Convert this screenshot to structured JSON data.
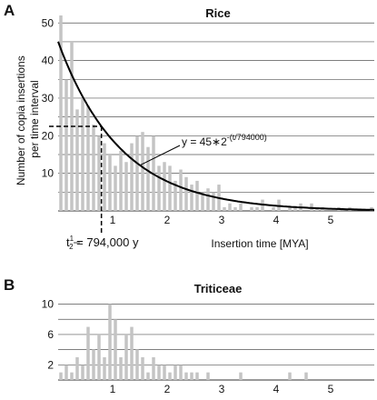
{
  "chart_data": [
    {
      "panel": "A",
      "title": "Rice",
      "type": "bar",
      "xlabel": "Insertion time [MYA]",
      "ylabel": [
        "Number of copia insertions",
        "per time interval"
      ],
      "xlim": [
        0,
        5.8
      ],
      "ylim": [
        0,
        52
      ],
      "xticks": [
        1,
        2,
        3,
        4,
        5
      ],
      "yticks": [
        10,
        20,
        30,
        40,
        50
      ],
      "grid": "horizontal every 5",
      "bin_width": 0.1,
      "x": [
        0.05,
        0.15,
        0.25,
        0.35,
        0.45,
        0.55,
        0.65,
        0.75,
        0.85,
        0.95,
        1.05,
        1.15,
        1.25,
        1.35,
        1.45,
        1.55,
        1.65,
        1.75,
        1.85,
        1.95,
        2.05,
        2.15,
        2.25,
        2.35,
        2.45,
        2.55,
        2.65,
        2.75,
        2.85,
        2.95,
        3.05,
        3.15,
        3.25,
        3.35,
        3.45,
        3.55,
        3.65,
        3.75,
        3.85,
        3.95,
        4.05,
        4.15,
        4.25,
        4.35,
        4.45,
        4.55,
        4.65,
        4.75,
        4.85,
        4.95,
        5.05,
        5.15,
        5.25,
        5.35,
        5.45,
        5.55,
        5.65,
        5.75
      ],
      "values": [
        52,
        35,
        45,
        27,
        30,
        28,
        23,
        20,
        18,
        15,
        12,
        16,
        13,
        18,
        20,
        21,
        17,
        20,
        12,
        13,
        12,
        8,
        11,
        9,
        7,
        8,
        5,
        6,
        5,
        7,
        1,
        2,
        1,
        2,
        0,
        1,
        1,
        3,
        0,
        1,
        3,
        0,
        1,
        1,
        2,
        0,
        2,
        1,
        1,
        0,
        0,
        1,
        0,
        1,
        0,
        0,
        0,
        1
      ],
      "fit": {
        "label_parts": [
          "y = 45",
          "∗",
          "2",
          "-(t/794000)"
        ],
        "y0": 45,
        "half_life_mya": 0.794
      },
      "half_life_label": [
        "t",
        "1",
        "2",
        " = 794,000 y"
      ],
      "half_life_marker": {
        "x": 0.794,
        "y": 22.5
      }
    },
    {
      "panel": "B",
      "title": "Triticeae",
      "type": "bar",
      "xlabel": "",
      "ylabel": "",
      "xlim": [
        0,
        5.8
      ],
      "ylim": [
        0,
        11.5
      ],
      "xticks": [
        1,
        2,
        3,
        4,
        5
      ],
      "yticks": [
        2,
        6,
        10
      ],
      "grid": "horizontal every 2",
      "bin_width": 0.1,
      "x": [
        0.05,
        0.15,
        0.25,
        0.35,
        0.45,
        0.55,
        0.65,
        0.75,
        0.85,
        0.95,
        1.05,
        1.15,
        1.25,
        1.35,
        1.45,
        1.55,
        1.65,
        1.75,
        1.85,
        1.95,
        2.05,
        2.15,
        2.25,
        2.35,
        2.45,
        2.55,
        2.65,
        2.75,
        2.85,
        2.95,
        3.05,
        3.15,
        3.25,
        3.35,
        3.45,
        3.55,
        3.65,
        3.75,
        3.85,
        3.95,
        4.05,
        4.15,
        4.25,
        4.35,
        4.45,
        4.55,
        4.65,
        4.75,
        4.85,
        4.95,
        5.05,
        5.15,
        5.25,
        5.35,
        5.45,
        5.55,
        5.65,
        5.75
      ],
      "values": [
        1,
        2,
        1,
        3,
        2,
        7,
        4,
        6,
        3,
        10,
        8,
        3,
        6,
        7,
        4,
        3,
        1,
        3,
        2,
        2,
        1,
        2,
        2,
        1,
        1,
        1,
        0,
        1,
        0,
        0,
        0,
        0,
        0,
        1,
        0,
        0,
        0,
        0,
        0,
        0,
        0,
        0,
        1,
        0,
        0,
        1,
        0,
        0,
        0,
        0,
        0,
        0,
        0,
        0,
        0,
        0,
        0,
        0
      ]
    }
  ]
}
